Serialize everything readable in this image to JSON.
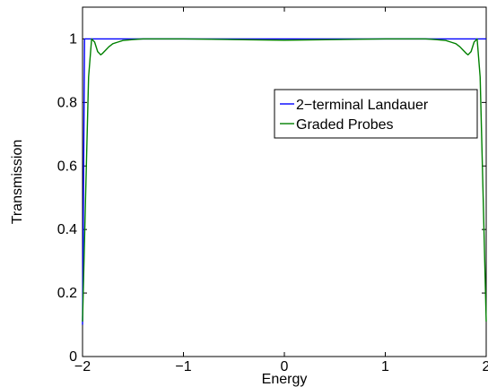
{
  "chart_data": {
    "type": "line",
    "title": "",
    "xlabel": "Energy",
    "ylabel": "Transmission",
    "xlim": [
      -2,
      2
    ],
    "ylim": [
      0,
      1.1
    ],
    "x_ticks": [
      -2,
      -1,
      0,
      1,
      2
    ],
    "x_tick_labels": [
      "−2",
      "−1",
      "0",
      "1",
      "2"
    ],
    "y_ticks": [
      0,
      0.2,
      0.4,
      0.6,
      0.8,
      1
    ],
    "y_tick_labels": [
      "0",
      "0.2",
      "0.4",
      "0.6",
      "0.8",
      "1"
    ],
    "grid": false,
    "legend_position": "right",
    "series": [
      {
        "name": "2−terminal Landauer",
        "color": "#0000ff",
        "x": [
          -2,
          -1.98,
          2
        ],
        "y": [
          0.1,
          1.0,
          1.0
        ]
      },
      {
        "name": "Graded Probes",
        "color": "#008000",
        "x": [
          -2,
          -1.97,
          -1.94,
          -1.91,
          -1.88,
          -1.85,
          -1.82,
          -1.8,
          -1.77,
          -1.74,
          -1.7,
          -1.65,
          -1.6,
          -1.5,
          -1.4,
          -1.3,
          -1.0,
          -0.5,
          0.0,
          0.5,
          1.0,
          1.3,
          1.4,
          1.5,
          1.6,
          1.65,
          1.7,
          1.74,
          1.77,
          1.8,
          1.82,
          1.85,
          1.88,
          1.91,
          1.94,
          1.97,
          2
        ],
        "y": [
          0.11,
          0.5,
          0.88,
          1.0,
          0.99,
          0.96,
          0.95,
          0.955,
          0.965,
          0.975,
          0.985,
          0.99,
          0.995,
          0.998,
          1.0,
          1.0,
          1.0,
          0.998,
          0.996,
          0.998,
          1.0,
          1.0,
          1.0,
          0.998,
          0.995,
          0.99,
          0.985,
          0.975,
          0.965,
          0.955,
          0.95,
          0.96,
          0.99,
          1.0,
          0.88,
          0.5,
          0.11
        ]
      }
    ]
  }
}
